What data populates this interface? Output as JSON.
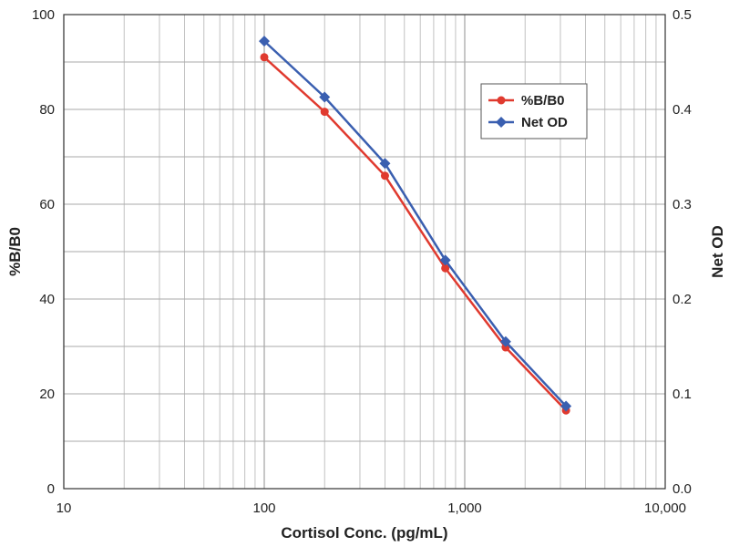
{
  "chart_data": {
    "type": "line",
    "title": "",
    "xlabel": "Cortisol Conc. (pg/mL)",
    "ylabel": "%B/B0",
    "y2label": "Net OD",
    "x_scale": "log",
    "xlim": [
      10,
      10000
    ],
    "ylim": [
      0,
      100
    ],
    "y2lim": [
      0,
      0.5
    ],
    "x_tick_labels": [
      "10",
      "100",
      "1,000",
      "10,000"
    ],
    "y_tick_labels": [
      "0",
      "20",
      "40",
      "60",
      "80",
      "100"
    ],
    "y2_tick_labels": [
      "0.0",
      "0.1",
      "0.2",
      "0.3",
      "0.4",
      "0.5"
    ],
    "grid": true,
    "legend_position": "top-right",
    "series": [
      {
        "name": "%B/B0",
        "axis": "left",
        "color": "#e03a2f",
        "marker": "circle",
        "x": [
          100,
          200,
          400,
          800,
          1600,
          3200
        ],
        "y": [
          91,
          79.5,
          66,
          46.5,
          29.8,
          16.5
        ]
      },
      {
        "name": "Net OD",
        "axis": "right",
        "color": "#3a5fb0",
        "marker": "diamond",
        "x": [
          100,
          200,
          400,
          800,
          1600,
          3200
        ],
        "y": [
          0.472,
          0.413,
          0.343,
          0.241,
          0.155,
          0.087
        ]
      }
    ]
  }
}
